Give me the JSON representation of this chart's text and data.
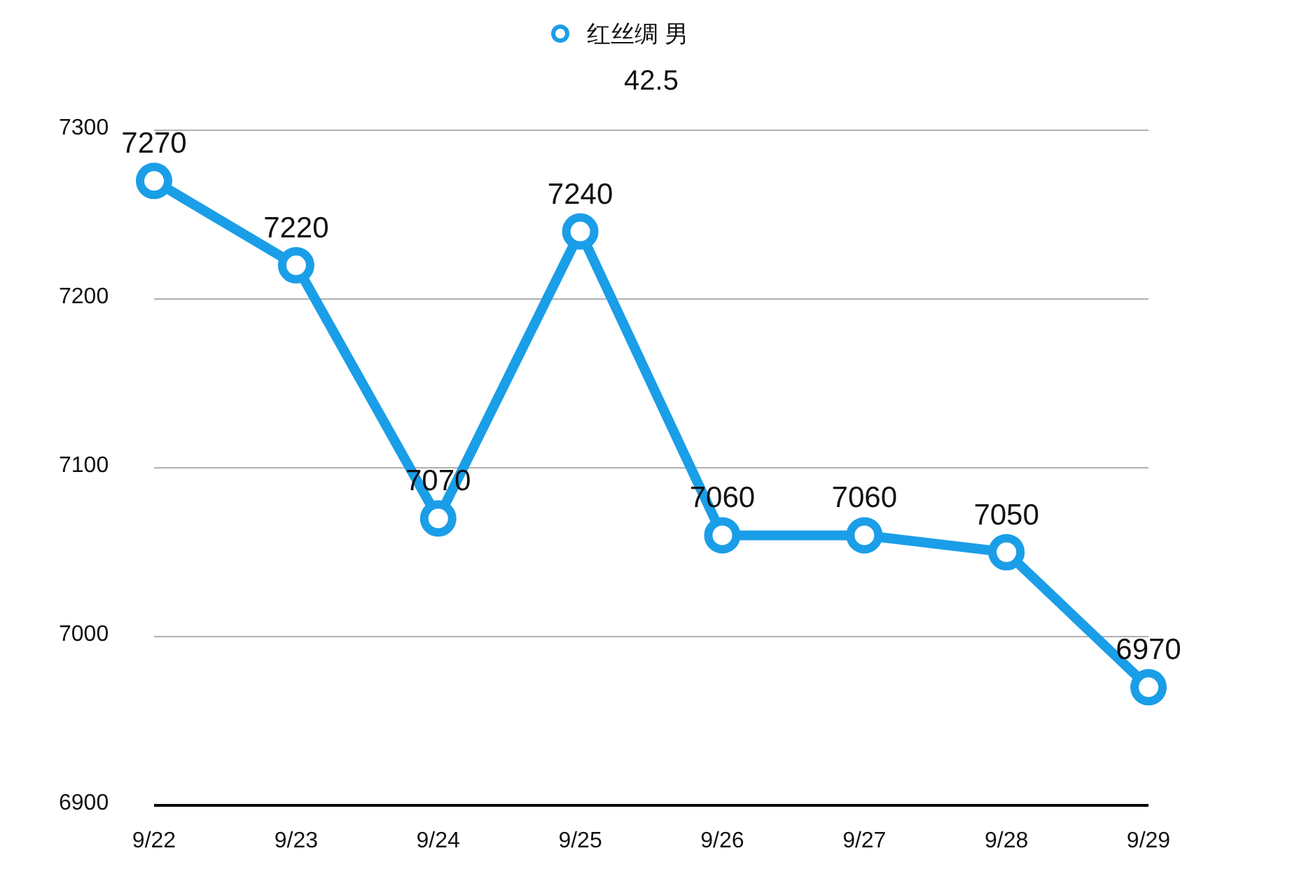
{
  "chart_data": {
    "type": "line",
    "subtitle": "42.5",
    "categories": [
      "9/22",
      "9/23",
      "9/24",
      "9/25",
      "9/26",
      "9/27",
      "9/28",
      "9/29"
    ],
    "series": [
      {
        "name": "红丝绸 男",
        "color": "#1a9ee8",
        "values": [
          7270,
          7220,
          7070,
          7240,
          7060,
          7060,
          7050,
          6970
        ]
      }
    ],
    "ylim": [
      6900,
      7300
    ],
    "yticks": [
      6900,
      7000,
      7100,
      7200,
      7300
    ],
    "grid": "y",
    "legend": "top",
    "marker": "circle",
    "data_labels": true
  }
}
